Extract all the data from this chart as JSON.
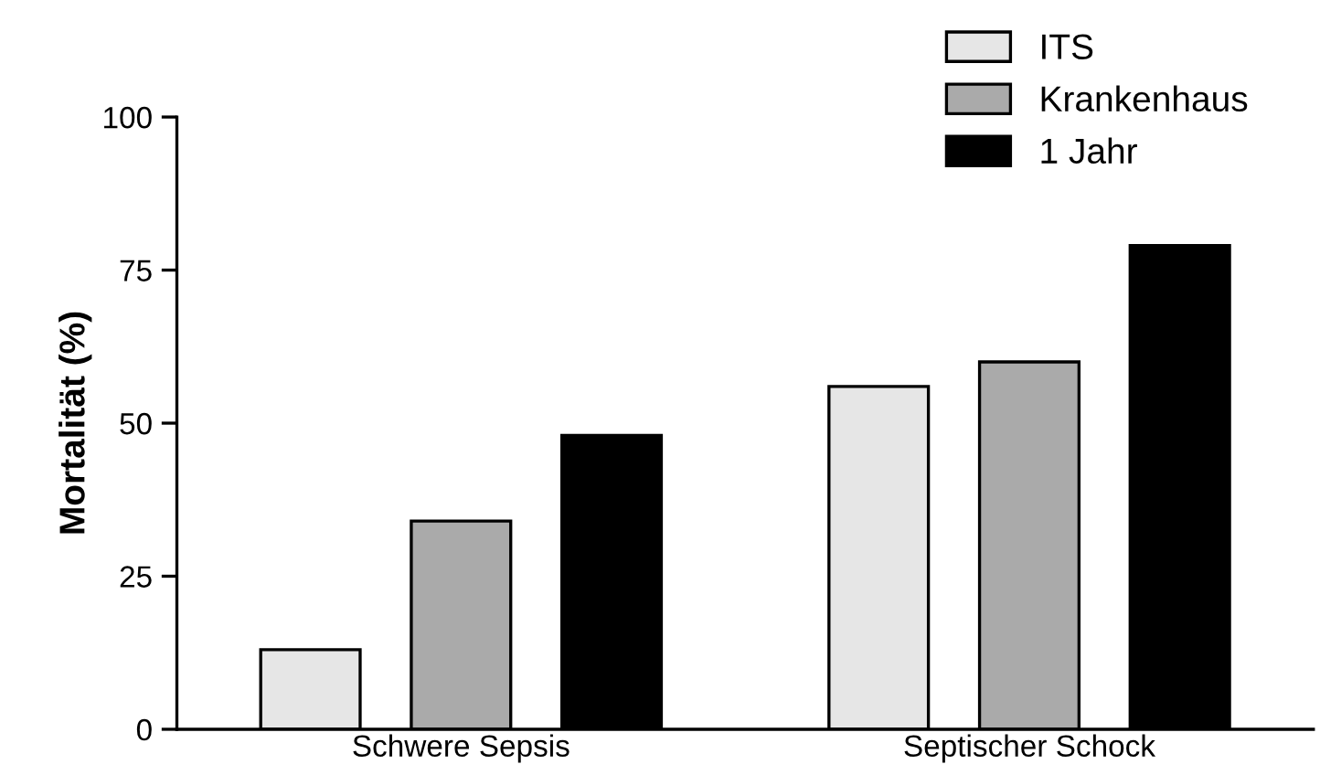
{
  "chart_data": {
    "type": "bar",
    "ylabel": "Mortalität (%)",
    "categories": [
      "Schwere Sepsis",
      "Septischer Schock"
    ],
    "series": [
      {
        "name": "ITS",
        "color": "#e6e6e6",
        "values": [
          13,
          56
        ]
      },
      {
        "name": "Krankenhaus",
        "color": "#aaaaaa",
        "values": [
          34,
          60
        ]
      },
      {
        "name": "1 Jahr",
        "color": "#000000",
        "values": [
          48,
          79
        ]
      }
    ],
    "ylim": [
      0,
      100
    ],
    "yticks": [
      0,
      25,
      50,
      75,
      100
    ],
    "grid": false,
    "legend": "top right"
  }
}
